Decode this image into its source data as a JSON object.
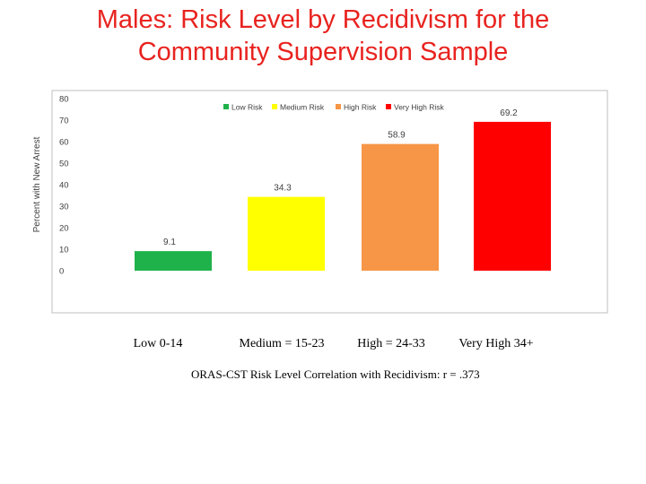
{
  "chart_data": {
    "type": "bar",
    "title": [
      "Males: Risk Level by Recidivism for the",
      "Community Supervision Sample"
    ],
    "ylabel": "Percent with New Arrest",
    "xlabel": "",
    "ylim": [
      0,
      80
    ],
    "yticks": [
      0,
      10,
      20,
      30,
      40,
      50,
      60,
      70,
      80
    ],
    "grid": false,
    "legend_position": "top",
    "series": [
      {
        "name": "Low Risk",
        "value": 9.1,
        "color": "#1fb24a"
      },
      {
        "name": "Medium Risk",
        "value": 34.3,
        "color": "#ffff00"
      },
      {
        "name": "High Risk",
        "value": 58.9,
        "color": "#f79646"
      },
      {
        "name": "Very High Risk",
        "value": 69.2,
        "color": "#ff0000"
      }
    ],
    "categories": [
      "Low 0-14",
      "Medium = 15-23",
      "High = 24-33",
      "Very High 34+"
    ],
    "values": [
      9.1,
      34.3,
      58.9,
      69.2
    ],
    "data_labels": [
      "9.1",
      "34.3",
      "58.9",
      "69.2"
    ]
  },
  "footnote": "ORAS-CST Risk Level Correlation with Recidivism: r = .373"
}
